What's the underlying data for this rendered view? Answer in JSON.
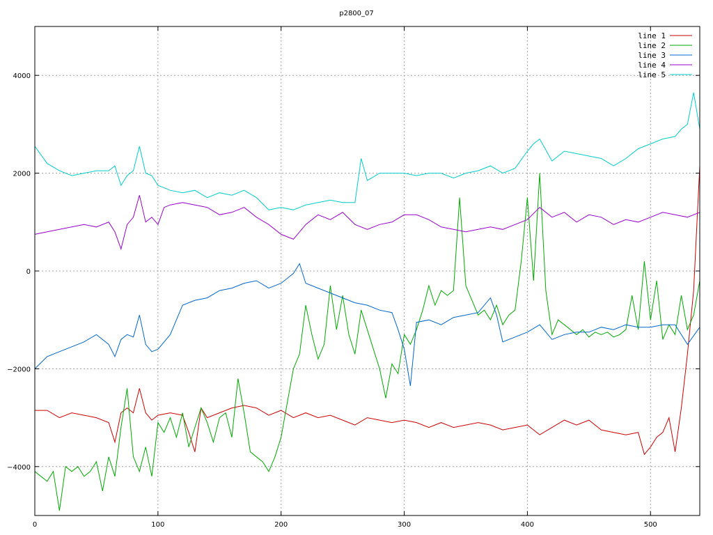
{
  "chart_data": {
    "type": "line",
    "title": "p2800_07",
    "xlabel": "",
    "ylabel": "",
    "xlim": [
      0,
      540
    ],
    "ylim": [
      -5000,
      5000
    ],
    "xticks": [
      0,
      100,
      200,
      300,
      400,
      500
    ],
    "yticks": [
      -4000,
      -2000,
      0,
      2000,
      4000
    ],
    "ytick_labels": [
      "−4000",
      "−2000",
      "0",
      "2000",
      "4000"
    ],
    "grid": true,
    "legend_position": "top-right",
    "series": [
      {
        "name": "line 1",
        "color": "#cc0000",
        "x": [
          0,
          10,
          20,
          30,
          40,
          50,
          60,
          65,
          70,
          75,
          80,
          85,
          90,
          95,
          100,
          110,
          120,
          125,
          130,
          135,
          140,
          150,
          160,
          170,
          180,
          190,
          200,
          210,
          220,
          230,
          240,
          250,
          260,
          270,
          280,
          290,
          300,
          310,
          320,
          330,
          340,
          350,
          360,
          370,
          380,
          390,
          400,
          410,
          420,
          430,
          440,
          450,
          460,
          470,
          480,
          490,
          495,
          500,
          505,
          510,
          515,
          520,
          525,
          530,
          535,
          540
        ],
        "y": [
          -2850,
          -2850,
          -3000,
          -2900,
          -2950,
          -3000,
          -3100,
          -3500,
          -2900,
          -2800,
          -2900,
          -2400,
          -2900,
          -3050,
          -2950,
          -2900,
          -2950,
          -3300,
          -3700,
          -2800,
          -3000,
          -2900,
          -2800,
          -2750,
          -2800,
          -2950,
          -2850,
          -3000,
          -2900,
          -3000,
          -2950,
          -3050,
          -3150,
          -3000,
          -3050,
          -3100,
          -3050,
          -3100,
          -3200,
          -3100,
          -3200,
          -3150,
          -3100,
          -3150,
          -3250,
          -3200,
          -3150,
          -3350,
          -3200,
          -3050,
          -3150,
          -3050,
          -3250,
          -3300,
          -3350,
          -3300,
          -3750,
          -3600,
          -3400,
          -3300,
          -3000,
          -3700,
          -2800,
          -1700,
          -400,
          2150
        ]
      },
      {
        "name": "line 2",
        "color": "#00aa00",
        "x": [
          0,
          5,
          10,
          15,
          20,
          25,
          30,
          35,
          40,
          45,
          50,
          55,
          60,
          65,
          70,
          75,
          80,
          85,
          90,
          95,
          100,
          105,
          110,
          115,
          120,
          125,
          130,
          135,
          140,
          145,
          150,
          155,
          160,
          165,
          170,
          175,
          180,
          185,
          190,
          195,
          200,
          205,
          210,
          215,
          220,
          225,
          230,
          235,
          240,
          245,
          250,
          255,
          260,
          265,
          270,
          275,
          280,
          285,
          290,
          295,
          300,
          305,
          310,
          315,
          320,
          325,
          330,
          335,
          340,
          345,
          350,
          355,
          360,
          365,
          370,
          375,
          380,
          385,
          390,
          395,
          400,
          405,
          410,
          415,
          420,
          425,
          430,
          435,
          440,
          445,
          450,
          455,
          460,
          465,
          470,
          475,
          480,
          485,
          490,
          495,
          500,
          505,
          510,
          515,
          520,
          525,
          530,
          535,
          540
        ],
        "y": [
          -4100,
          -4200,
          -4300,
          -4100,
          -4900,
          -4000,
          -4100,
          -4000,
          -4200,
          -4100,
          -3900,
          -4500,
          -3800,
          -4200,
          -3200,
          -2400,
          -3800,
          -4100,
          -3600,
          -4200,
          -3100,
          -3300,
          -3000,
          -3400,
          -2900,
          -3600,
          -3200,
          -2800,
          -3100,
          -3500,
          -3000,
          -2900,
          -3400,
          -2200,
          -2900,
          -3700,
          -3800,
          -3900,
          -4100,
          -3800,
          -3400,
          -2700,
          -2000,
          -1700,
          -700,
          -1300,
          -1800,
          -1500,
          -300,
          -1200,
          -500,
          -1300,
          -1700,
          -800,
          -1200,
          -1600,
          -2000,
          -2600,
          -1900,
          -2100,
          -1300,
          -1500,
          -1200,
          -800,
          -300,
          -700,
          -400,
          -500,
          -400,
          1500,
          -300,
          -600,
          -900,
          -800,
          -1000,
          -700,
          -1100,
          -900,
          -800,
          200,
          1500,
          -200,
          2000,
          -400,
          -1300,
          -1000,
          -1100,
          -1200,
          -1300,
          -1200,
          -1350,
          -1250,
          -1300,
          -1250,
          -1350,
          -1300,
          -1200,
          -500,
          -1200,
          200,
          -1000,
          -200,
          -1400,
          -1100,
          -1300,
          -500,
          -1200,
          -900,
          -200
        ]
      },
      {
        "name": "line 3",
        "color": "#0066cc",
        "x": [
          0,
          10,
          20,
          30,
          40,
          50,
          60,
          65,
          70,
          75,
          80,
          85,
          90,
          95,
          100,
          110,
          120,
          130,
          140,
          150,
          160,
          170,
          180,
          190,
          200,
          210,
          215,
          220,
          230,
          240,
          250,
          260,
          270,
          280,
          290,
          295,
          300,
          305,
          310,
          320,
          330,
          340,
          350,
          360,
          370,
          375,
          380,
          390,
          400,
          410,
          420,
          430,
          440,
          450,
          460,
          470,
          480,
          490,
          500,
          510,
          520,
          530,
          540
        ],
        "y": [
          -2000,
          -1750,
          -1650,
          -1550,
          -1450,
          -1300,
          -1500,
          -1750,
          -1400,
          -1300,
          -1350,
          -900,
          -1500,
          -1650,
          -1600,
          -1300,
          -700,
          -600,
          -550,
          -400,
          -350,
          -250,
          -200,
          -350,
          -250,
          -50,
          150,
          -250,
          -350,
          -450,
          -550,
          -650,
          -700,
          -800,
          -850,
          -1200,
          -1600,
          -2350,
          -1050,
          -1000,
          -1100,
          -950,
          -900,
          -850,
          -550,
          -900,
          -1450,
          -1350,
          -1250,
          -1100,
          -1400,
          -1300,
          -1250,
          -1250,
          -1150,
          -1200,
          -1100,
          -1150,
          -1150,
          -1100,
          -1100,
          -1500,
          -1150
        ]
      },
      {
        "name": "line 4",
        "color": "#9900cc",
        "x": [
          0,
          10,
          20,
          30,
          40,
          50,
          60,
          65,
          70,
          75,
          80,
          85,
          90,
          95,
          100,
          105,
          110,
          120,
          130,
          140,
          150,
          160,
          170,
          180,
          190,
          200,
          210,
          220,
          230,
          240,
          250,
          260,
          270,
          280,
          290,
          300,
          310,
          320,
          330,
          340,
          350,
          360,
          370,
          380,
          390,
          400,
          410,
          420,
          430,
          440,
          450,
          460,
          470,
          480,
          490,
          500,
          510,
          520,
          530,
          540
        ],
        "y": [
          750,
          800,
          850,
          900,
          950,
          900,
          1000,
          800,
          450,
          950,
          1100,
          1550,
          1000,
          1100,
          950,
          1300,
          1350,
          1400,
          1350,
          1300,
          1150,
          1200,
          1300,
          1100,
          950,
          750,
          650,
          950,
          1150,
          1050,
          1200,
          950,
          850,
          950,
          1000,
          1150,
          1150,
          1050,
          900,
          850,
          800,
          850,
          900,
          850,
          950,
          1050,
          1300,
          1100,
          1200,
          1000,
          1150,
          1100,
          950,
          1050,
          1000,
          1100,
          1200,
          1150,
          1100,
          1200
        ]
      },
      {
        "name": "line 5",
        "color": "#00cccc",
        "x": [
          0,
          10,
          20,
          30,
          40,
          50,
          60,
          65,
          70,
          75,
          80,
          85,
          90,
          95,
          100,
          110,
          120,
          130,
          140,
          150,
          160,
          170,
          180,
          190,
          200,
          210,
          220,
          230,
          240,
          250,
          260,
          265,
          270,
          280,
          290,
          300,
          310,
          320,
          330,
          340,
          350,
          360,
          370,
          380,
          390,
          400,
          405,
          410,
          420,
          430,
          440,
          450,
          460,
          470,
          480,
          490,
          500,
          510,
          520,
          525,
          530,
          535,
          540
        ],
        "y": [
          2550,
          2200,
          2050,
          1950,
          2000,
          2050,
          2050,
          2150,
          1750,
          1950,
          2050,
          2550,
          2000,
          1950,
          1750,
          1650,
          1600,
          1650,
          1500,
          1600,
          1550,
          1650,
          1500,
          1250,
          1300,
          1250,
          1350,
          1400,
          1450,
          1400,
          1400,
          2300,
          1850,
          2000,
          2000,
          2000,
          1950,
          2000,
          2000,
          1900,
          2000,
          2050,
          2150,
          2000,
          2100,
          2450,
          2600,
          2700,
          2250,
          2450,
          2400,
          2350,
          2300,
          2150,
          2300,
          2500,
          2600,
          2700,
          2750,
          2900,
          3000,
          3650,
          2900
        ]
      }
    ]
  }
}
